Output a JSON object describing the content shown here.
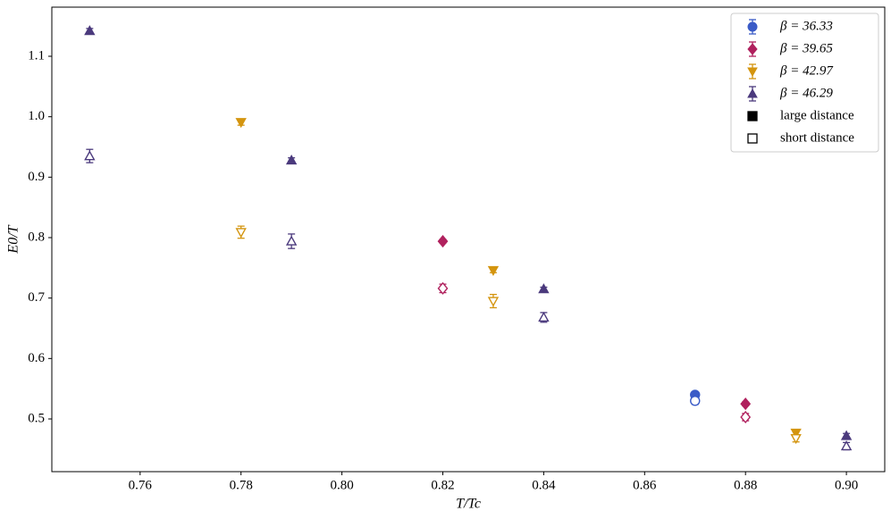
{
  "chart_data": {
    "type": "scatter",
    "x_label": "T/Tc",
    "y_label": "E0/T",
    "xlim": [
      0.7425,
      0.9076
    ],
    "ylim": [
      0.4128,
      1.1813
    ],
    "xticks": [
      0.76,
      0.78,
      {
        "value": 0.8,
        "label": "0.80"
      },
      0.82,
      0.84,
      0.86,
      0.88,
      {
        "value": 0.9,
        "label": "0.90"
      }
    ],
    "yticks": [
      0.5,
      0.6,
      0.7,
      0.8,
      0.9,
      {
        "value": 1.0,
        "label": "1.0"
      },
      1.1
    ],
    "legend": "upper right",
    "style_legend": [
      "large distance",
      "short distance"
    ],
    "series": [
      {
        "name": "β = 36.33",
        "color": "#3a5bc7",
        "marker": "circle",
        "x": [
          0.87
        ],
        "values": [
          0.54
        ],
        "errors": [
          0.003
        ],
        "short_values": [
          0.53
        ],
        "short_errors": [
          0.006
        ]
      },
      {
        "name": "β = 39.65",
        "color": "#b0215e",
        "marker": "diamond",
        "x": [
          0.82,
          0.88
        ],
        "values": [
          0.794,
          0.525
        ],
        "errors": [
          0.003,
          0.003
        ],
        "short_values": [
          0.716,
          0.503
        ],
        "short_errors": [
          0.007,
          0.006
        ]
      },
      {
        "name": "β = 42.97",
        "color": "#d4950f",
        "marker": "triangle-down",
        "x": [
          0.78,
          0.83,
          0.89
        ],
        "values": [
          0.991,
          0.746,
          0.477
        ],
        "errors": [
          0.005,
          0.004,
          0.004
        ],
        "short_values": [
          0.809,
          0.695,
          0.468
        ],
        "short_errors": [
          0.01,
          0.011,
          0.006
        ]
      },
      {
        "name": "β = 46.29",
        "color": "#4b3a7d",
        "marker": "triangle-up",
        "x": [
          0.75,
          0.79,
          0.84,
          0.9
        ],
        "values": [
          1.142,
          0.928,
          0.715,
          0.472
        ],
        "errors": [
          0.004,
          0.004,
          0.003,
          0.004
        ],
        "short_values": [
          0.935,
          0.794,
          0.668,
          0.455
        ],
        "short_errors": [
          0.011,
          0.012,
          0.008,
          0.006
        ]
      }
    ]
  }
}
